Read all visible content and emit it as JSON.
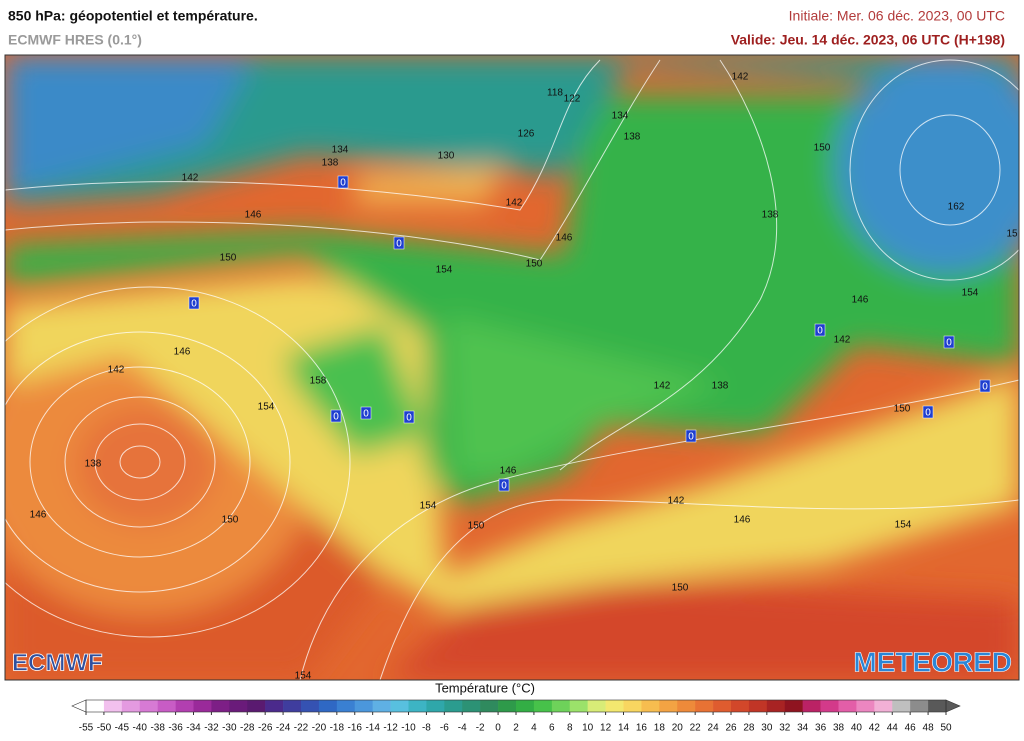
{
  "header": {
    "title": "850 hPa: géopotentiel et température.",
    "subtitle": "ECMWF HRES (0.1°)",
    "initial": "Initiale: Mer. 06 déc. 2023, 00 UTC",
    "valid": "Valide: Jeu. 14 déc. 2023, 06 UTC (H+198)"
  },
  "logos": {
    "left": "ECMWF",
    "right": "METEORED"
  },
  "map": {
    "contour_labels": [
      "142",
      "146",
      "150",
      "134",
      "138",
      "130",
      "126",
      "118",
      "122",
      "134",
      "138",
      "142",
      "150",
      "142",
      "146",
      "150",
      "154",
      "138",
      "162",
      "15",
      "154",
      "146",
      "142",
      "146",
      "142",
      "158",
      "154",
      "142",
      "138",
      "150",
      "138",
      "146",
      "154",
      "150",
      "142",
      "146",
      "154",
      "146",
      "150",
      "150",
      "154"
    ],
    "zero_labels": [
      "0",
      "0",
      "0",
      "0",
      "0",
      "0",
      "0",
      "0",
      "0",
      "0",
      "0",
      "0"
    ]
  },
  "colorbar": {
    "label": "Température (°C)",
    "ticks": [
      -55,
      -50,
      -45,
      -40,
      -38,
      -36,
      -34,
      -32,
      -30,
      -28,
      -26,
      -24,
      -22,
      -20,
      -18,
      -16,
      -14,
      -12,
      -10,
      -8,
      -6,
      -4,
      -2,
      0,
      2,
      4,
      6,
      8,
      10,
      12,
      14,
      16,
      18,
      20,
      22,
      24,
      26,
      28,
      30,
      32,
      34,
      36,
      38,
      40,
      42,
      44,
      46,
      48,
      50
    ],
    "colors": [
      "#ffffff",
      "#f2c0ee",
      "#e49ae0",
      "#d77ad4",
      "#c85cc5",
      "#b23fb0",
      "#9a2a9a",
      "#7d1f86",
      "#6a1b7a",
      "#5a1a70",
      "#4b2a8c",
      "#3f3d9e",
      "#3552b2",
      "#2f68c4",
      "#3a80d2",
      "#4b97dc",
      "#5fb0e4",
      "#58c0df",
      "#3db4c4",
      "#2fa7aa",
      "#2b9c8f",
      "#2c9275",
      "#2f8a5e",
      "#2e9a4a",
      "#33ae45",
      "#47c24a",
      "#6ed25a",
      "#9be26a",
      "#d8ec77",
      "#f3e86f",
      "#f8d660",
      "#f7bd4f",
      "#f3a343",
      "#ee8a3a",
      "#e87234",
      "#df5c2f",
      "#d2472a",
      "#c13526",
      "#a82323",
      "#8f1420",
      "#bb2265",
      "#d33a8a",
      "#e35ea8",
      "#ec86c0",
      "#f2b0d6",
      "#bfbfbf",
      "#8c8c8c",
      "#595959"
    ]
  }
}
